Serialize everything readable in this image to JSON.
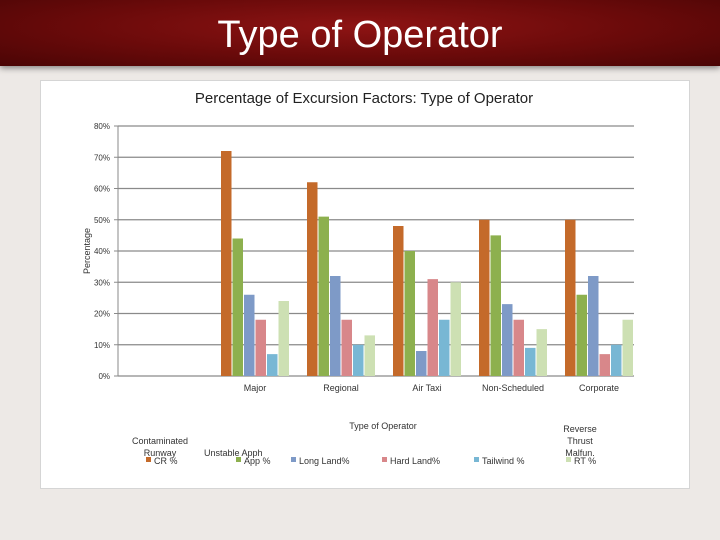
{
  "slide": {
    "title": "Type of Operator"
  },
  "colors": {
    "banner": "#7a0d0d",
    "series": [
      "#c46a2a",
      "#8db04e",
      "#7e9ac7",
      "#d8878a",
      "#78b7d4",
      "#cde0b3"
    ]
  },
  "chart_data": {
    "type": "bar",
    "title": "Percentage of Excursion Factors: Type of Operator",
    "xlabel": "Type of Operator",
    "ylabel": "Percentage",
    "ylim": [
      0,
      80
    ],
    "yticks": [
      "0%",
      "10%",
      "20%",
      "30%",
      "40%",
      "50%",
      "60%",
      "70%",
      "80%"
    ],
    "grid": true,
    "legend_position": "bottom",
    "categories": [
      "",
      "Major",
      "Regional",
      "Air Taxi",
      "Non-Scheduled",
      "Corporate"
    ],
    "series": [
      {
        "name": "CR %",
        "legend_label": "Contaminated Runway",
        "values": [
          null,
          72,
          62,
          48,
          50,
          50
        ]
      },
      {
        "name": "App %",
        "legend_label": "Unstable Apph",
        "values": [
          null,
          44,
          51,
          40,
          45,
          26
        ]
      },
      {
        "name": "Long Land%",
        "legend_label": "",
        "values": [
          null,
          26,
          32,
          8,
          23,
          32
        ]
      },
      {
        "name": "Hard Land%",
        "legend_label": "",
        "values": [
          null,
          18,
          18,
          31,
          18,
          7
        ]
      },
      {
        "name": "Tailwind %",
        "legend_label": "",
        "values": [
          null,
          7,
          10,
          18,
          9,
          10
        ]
      },
      {
        "name": "RT %",
        "legend_label": "Reverse Thrust Malfun.",
        "values": [
          null,
          24,
          13,
          30,
          15,
          18
        ]
      }
    ]
  }
}
